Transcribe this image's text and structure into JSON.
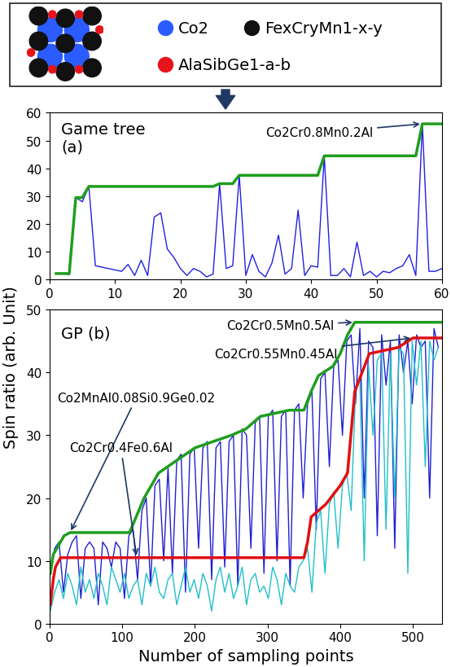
{
  "header": {
    "legend": [
      {
        "label": "Co2",
        "color": "#2a5cff"
      },
      {
        "label": "FexCryMn1-x-y",
        "color": "#111111"
      },
      {
        "label": "AlaSibGe1-a-b",
        "color": "#e8141c"
      }
    ]
  },
  "ylabel": "Spin ratio (arb. Unit)",
  "chart_data": [
    {
      "type": "line",
      "panel_label": "Game tree\n(a)",
      "xlim": [
        0,
        60
      ],
      "xticks": [
        0,
        10,
        20,
        30,
        40,
        50,
        60
      ],
      "ylim": [
        0,
        60
      ],
      "yticks": [
        0,
        10,
        20,
        30,
        40,
        50,
        60
      ],
      "series": [
        {
          "color": "#2020e0",
          "x": [
            1,
            2,
            3,
            4,
            5,
            6,
            7,
            8,
            9,
            10,
            11,
            12,
            13,
            14,
            15,
            16,
            17,
            18,
            19,
            20,
            21,
            22,
            23,
            24,
            25,
            26,
            27,
            28,
            29,
            30,
            31,
            32,
            33,
            34,
            35,
            36,
            37,
            38,
            39,
            40,
            41,
            42,
            43,
            44,
            45,
            46,
            47,
            48,
            49,
            50,
            51,
            52,
            53,
            54,
            55,
            56,
            57,
            58,
            59,
            60
          ],
          "values": [
            2.2,
            2.2,
            1.8,
            29.5,
            28,
            33.5,
            5,
            4.5,
            4,
            3.5,
            3,
            5.5,
            1.5,
            7,
            1.5,
            22.5,
            24,
            11,
            8,
            4,
            1.5,
            4,
            3,
            1,
            2,
            34.5,
            4,
            5,
            37.5,
            1.5,
            9,
            3,
            1,
            6,
            16,
            2,
            4,
            25,
            1.5,
            5,
            4.5,
            44.5,
            1.5,
            1.5,
            4,
            1,
            13.5,
            1.5,
            3,
            1,
            3,
            2.5,
            4,
            5,
            9,
            1.5,
            56,
            3,
            3,
            4
          ]
        },
        {
          "color": "#1e9e1e",
          "x": [
            1,
            2,
            3,
            4,
            5,
            6,
            25,
            26,
            27,
            28,
            29,
            41,
            42,
            56,
            57,
            60
          ],
          "values": [
            2.2,
            2.2,
            2.2,
            29.5,
            29.5,
            33.5,
            33.5,
            34.5,
            34.5,
            34.5,
            37.5,
            37.5,
            44.5,
            44.5,
            56,
            56
          ]
        }
      ],
      "annotations": [
        {
          "text": "Co2Cr0.8Mn0.2Al",
          "x": 57,
          "y": 56
        }
      ]
    },
    {
      "type": "line",
      "panel_label": "GP (b)",
      "xlabel": "Number of sampling points",
      "xlim": [
        0,
        540
      ],
      "xticks": [
        0,
        100,
        200,
        300,
        400,
        500
      ],
      "ylim": [
        0,
        50
      ],
      "yticks": [
        0,
        10,
        20,
        30,
        40,
        50
      ],
      "series": [
        {
          "color": "#2020d0",
          "x": [
            1,
            7,
            13,
            19,
            25,
            31,
            37,
            43,
            49,
            55,
            61,
            67,
            73,
            79,
            85,
            91,
            97,
            103,
            109,
            115,
            121,
            127,
            133,
            139,
            145,
            151,
            157,
            163,
            169,
            175,
            181,
            187,
            193,
            199,
            205,
            211,
            217,
            223,
            229,
            235,
            241,
            247,
            253,
            259,
            265,
            271,
            277,
            283,
            289,
            295,
            301,
            307,
            313,
            319,
            325,
            331,
            337,
            343,
            349,
            355,
            361,
            367,
            373,
            379,
            385,
            391,
            397,
            403,
            409,
            415,
            421,
            427,
            433,
            439,
            445,
            451,
            457,
            463,
            469,
            475,
            481,
            487,
            493,
            499,
            505,
            511,
            517,
            523,
            529,
            535
          ],
          "values": [
            8,
            12,
            13,
            5,
            11,
            13,
            14,
            4,
            12,
            13,
            12,
            3,
            13,
            12,
            9,
            13,
            12,
            4,
            14,
            15,
            7,
            18,
            20,
            6,
            22,
            23,
            10,
            25,
            8,
            26,
            27,
            5,
            27,
            28,
            12,
            28,
            29,
            7,
            28,
            29,
            9,
            29,
            30,
            6,
            31,
            30,
            12,
            32,
            33,
            8,
            33,
            34,
            10,
            33,
            34,
            6,
            34,
            35,
            20,
            35,
            37,
            15,
            39,
            40,
            25,
            41,
            42,
            30,
            45,
            46,
            35,
            47,
            20,
            45,
            44,
            14,
            46,
            38,
            45,
            12,
            46,
            40,
            45,
            35,
            46,
            44,
            45,
            20,
            47,
            44
          ]
        },
        {
          "color": "#20c0c8",
          "x": [
            1,
            7,
            13,
            19,
            25,
            31,
            37,
            43,
            49,
            55,
            61,
            67,
            73,
            79,
            85,
            91,
            97,
            103,
            109,
            115,
            121,
            127,
            133,
            139,
            145,
            151,
            157,
            163,
            169,
            175,
            181,
            187,
            193,
            199,
            205,
            211,
            217,
            223,
            229,
            235,
            241,
            247,
            253,
            259,
            265,
            271,
            277,
            283,
            289,
            295,
            301,
            307,
            313,
            319,
            325,
            331,
            337,
            343,
            349,
            355,
            361,
            367,
            373,
            379,
            385,
            391,
            397,
            403,
            409,
            415,
            421,
            427,
            433,
            439,
            445,
            451,
            457,
            463,
            469,
            475,
            481,
            487,
            493,
            499,
            505,
            511,
            517,
            523,
            529,
            535
          ],
          "values": [
            2,
            5,
            7,
            4,
            8,
            6,
            3,
            9,
            5,
            7,
            4,
            8,
            6,
            3,
            9,
            7,
            5,
            8,
            4,
            6,
            7,
            3,
            8,
            6,
            9,
            5,
            4,
            7,
            8,
            3,
            6,
            9,
            5,
            7,
            4,
            8,
            6,
            2,
            7,
            9,
            5,
            8,
            4,
            6,
            9,
            3,
            7,
            8,
            5,
            6,
            4,
            9,
            7,
            3,
            8,
            6,
            5,
            9,
            10,
            12,
            5,
            16,
            18,
            8,
            19,
            21,
            12,
            22,
            24,
            18,
            37,
            39,
            10,
            41,
            30,
            42,
            43,
            15,
            43,
            20,
            44,
            43,
            8,
            45,
            38,
            45,
            25,
            45,
            42,
            44
          ]
        },
        {
          "color": "#1e9e1e",
          "x": [
            1,
            5,
            10,
            20,
            28,
            110,
            130,
            150,
            200,
            250,
            270,
            290,
            310,
            330,
            350,
            360,
            370,
            390,
            400,
            410,
            420,
            540
          ],
          "values": [
            8,
            11,
            12,
            14,
            14.5,
            14.5,
            20,
            24,
            28,
            30,
            31,
            33,
            33.5,
            34,
            34,
            37,
            39.5,
            41,
            43,
            46,
            48,
            48
          ]
        },
        {
          "color": "#e01010",
          "x": [
            1,
            5,
            8,
            15,
            350,
            355,
            360,
            380,
            400,
            410,
            420,
            430,
            440,
            460,
            480,
            500,
            540
          ],
          "values": [
            3,
            7,
            9,
            10.5,
            10.5,
            13,
            17,
            19,
            22,
            24,
            37,
            40,
            43,
            43.5,
            44,
            45.5,
            45.5
          ]
        }
      ],
      "annotations": [
        {
          "text": "Co2Cr0.5Mn0.5Al",
          "x": 420,
          "y": 48
        },
        {
          "text": "Co2Cr0.55Mn0.45Al",
          "x": 500,
          "y": 45.5
        },
        {
          "text": "Co2MnAl0.08Si0.9Ge0.02",
          "x": 28,
          "y": 14.5
        },
        {
          "text": "Co2Cr0.4Fe0.6Al",
          "x": 120,
          "y": 10.5
        }
      ]
    }
  ]
}
